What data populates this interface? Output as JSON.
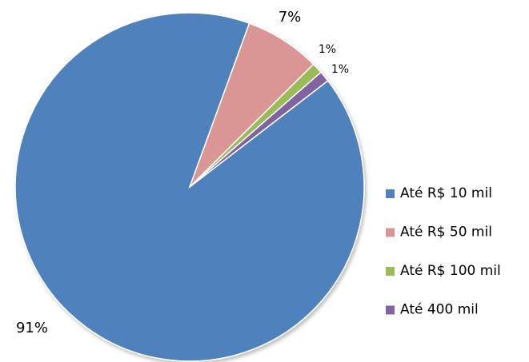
{
  "chart_data": {
    "type": "pie",
    "categories": [
      "Até R$ 10 mil",
      "Até R$ 50 mil",
      "Até R$ 100 mil",
      "Até 400 mil"
    ],
    "values": [
      91,
      7,
      1,
      1
    ],
    "value_labels": [
      "91%",
      "7%",
      "1%",
      "1%"
    ],
    "colors": [
      "#4f81bd",
      "#d99694",
      "#9bbb59",
      "#8064a2"
    ],
    "legend": "right"
  }
}
